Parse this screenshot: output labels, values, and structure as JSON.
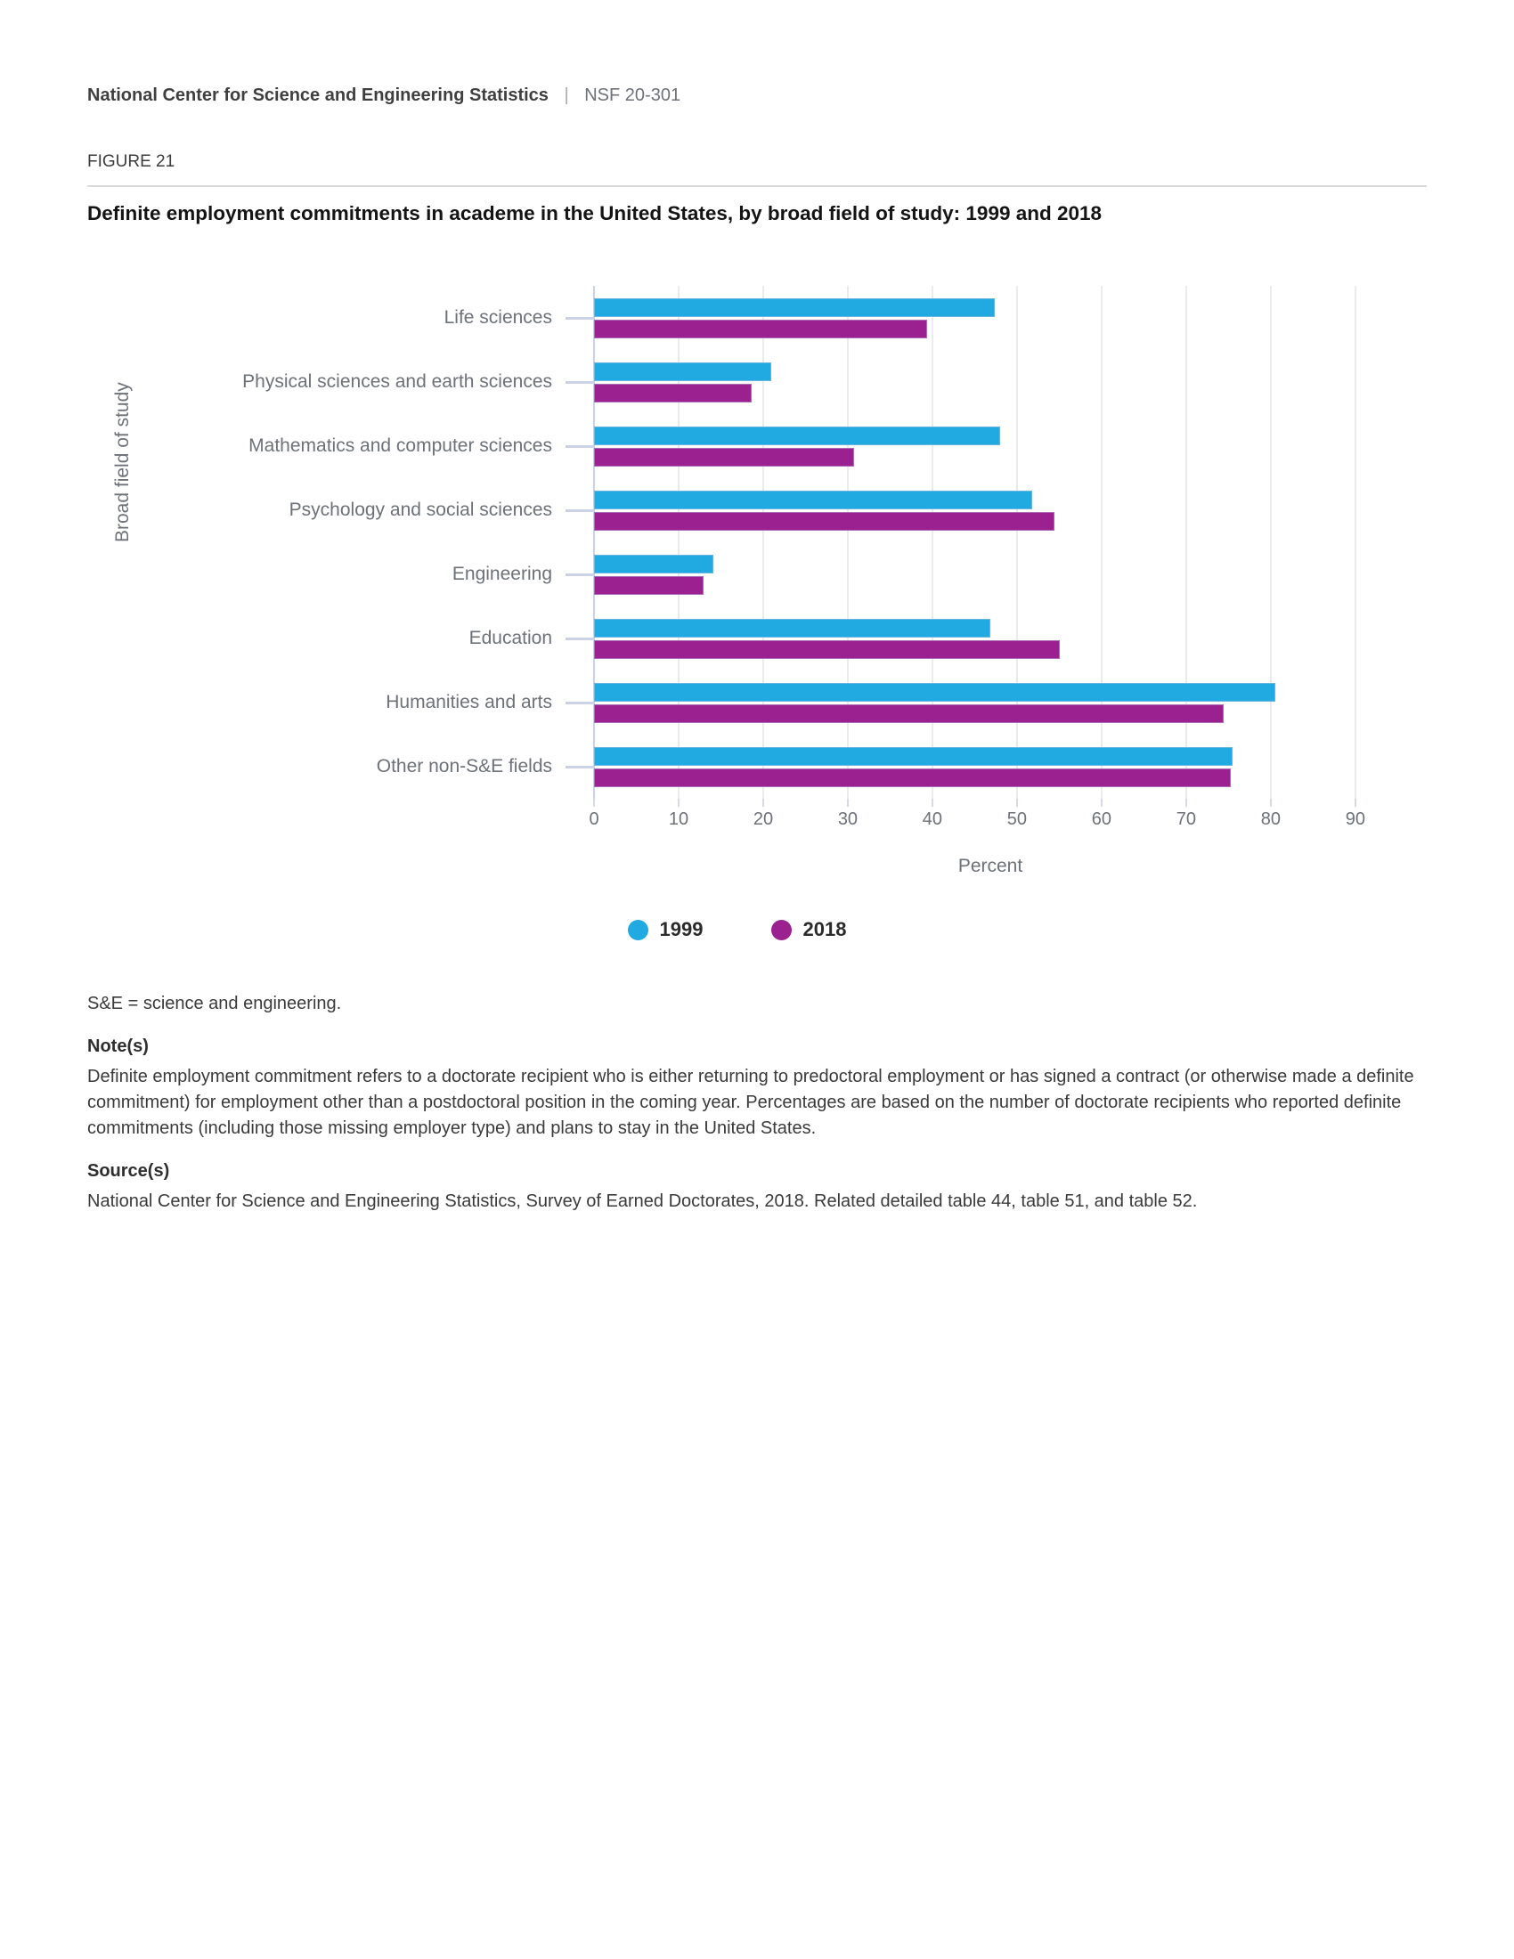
{
  "header": {
    "org": "National Center for Science and Engineering Statistics",
    "separator": "|",
    "report_id": "NSF 20-301"
  },
  "figure": {
    "label": "FIGURE 21",
    "title": "Definite employment commitments in academe in the United States, by broad field of study: 1999 and 2018"
  },
  "chart_data": {
    "type": "bar",
    "orientation": "horizontal",
    "title": "Definite employment commitments in academe in the United States, by broad field of study: 1999 and 2018",
    "categories": [
      "Life sciences",
      "Physical sciences and earth sciences",
      "Mathematics and computer sciences",
      "Psychology and social sciences",
      "Engineering",
      "Education",
      "Humanities and arts",
      "Other non-S&E fields"
    ],
    "series": [
      {
        "name": "1999",
        "color": "#21a9e1",
        "values": [
          47.4,
          21.0,
          48.0,
          51.8,
          14.1,
          46.9,
          80.5,
          75.5
        ]
      },
      {
        "name": "2018",
        "color": "#9b2190",
        "values": [
          39.4,
          18.6,
          30.7,
          54.4,
          13.0,
          55.1,
          74.4,
          75.3
        ]
      }
    ],
    "xlabel": "Percent",
    "ylabel": "Broad field of study",
    "xlim": [
      0,
      90
    ],
    "xticks": [
      0,
      10,
      20,
      30,
      40,
      50,
      60,
      70,
      80,
      90
    ],
    "grid": true,
    "legend_position": "bottom"
  },
  "notes": {
    "abbreviation": "S&E = science and engineering.",
    "notes_heading": "Note(s)",
    "notes_text": "Definite employment commitment refers to a doctorate recipient who is either returning to predoctoral employment or has signed a contract (or otherwise made a definite commitment) for employment other than a postdoctoral position in the coming year. Percentages are based on the number of doctorate recipients who reported definite commitments (including those missing employer type) and plans to stay in the United States.",
    "sources_heading": "Source(s)",
    "sources_text": "National Center for Science and Engineering Statistics, Survey of Earned Doctorates, 2018. Related detailed table 44, table 51, and table 52."
  }
}
